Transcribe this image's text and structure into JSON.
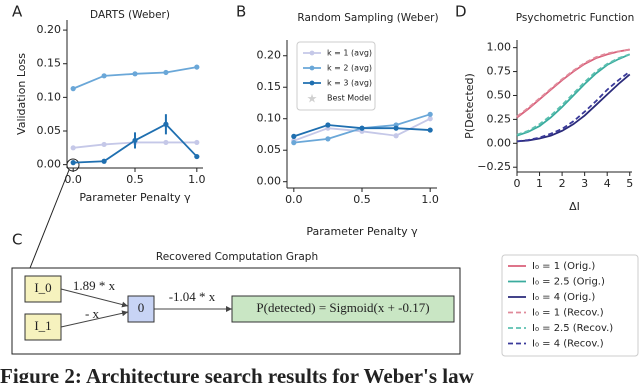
{
  "panel_labels": {
    "a": "A",
    "b": "B",
    "c": "C",
    "d": "D"
  },
  "chart_data": [
    {
      "type": "line",
      "title": "DARTS (Weber)",
      "x_label": "Parameter Penalty γ",
      "y_label": "Validation Loss",
      "x": [
        0,
        0.25,
        0.5,
        0.75,
        1.0
      ],
      "xlim": [
        -0.05,
        1.05
      ],
      "ylim": [
        -0.005,
        0.215
      ],
      "xticks": [
        {
          "value": 0,
          "label": "0.0"
        },
        {
          "value": 0.5,
          "label": "0.5"
        },
        {
          "value": 1,
          "label": "1.0"
        }
      ],
      "yticks": [
        {
          "value": 0,
          "label": "0.00"
        },
        {
          "value": 0.05,
          "label": "0.05"
        },
        {
          "value": 0.1,
          "label": "0.10"
        },
        {
          "value": 0.15,
          "label": "0.15"
        },
        {
          "value": 0.2,
          "label": "0.20"
        }
      ],
      "markers": true,
      "series": [
        {
          "color": "#c5c8e8",
          "values": [
            0.025,
            0.03,
            0.033,
            0.033,
            0.033
          ]
        },
        {
          "color": "#6aa7d8",
          "values": [
            0.113,
            0.132,
            0.135,
            0.137,
            0.145
          ]
        },
        {
          "color": "#1f6fb0",
          "values": [
            0.003,
            0.005,
            0.036,
            0.06,
            0.012
          ],
          "errors": [
            null,
            null,
            0.012,
            0.015,
            null
          ]
        }
      ]
    },
    {
      "type": "line",
      "title": "Random Sampling (Weber)",
      "x_label": "Parameter Penalty γ",
      "x": [
        0,
        0.25,
        0.5,
        0.75,
        1.0
      ],
      "xlim": [
        -0.05,
        1.05
      ],
      "ylim": [
        -0.01,
        0.225
      ],
      "xticks": [
        {
          "value": 0,
          "label": "0.0"
        },
        {
          "value": 0.5,
          "label": "0.5"
        },
        {
          "value": 1,
          "label": "1.0"
        }
      ],
      "yticks": [
        {
          "value": 0,
          "label": "0.00"
        },
        {
          "value": 0.05,
          "label": "0.05"
        },
        {
          "value": 0.1,
          "label": "0.10"
        },
        {
          "value": 0.15,
          "label": "0.15"
        },
        {
          "value": 0.2,
          "label": "0.20"
        }
      ],
      "markers": true,
      "legend": "upper left",
      "series": [
        {
          "name": "k = 1 (avg)",
          "color": "#c5c8e8",
          "values": [
            0.065,
            0.085,
            0.08,
            0.073,
            0.1
          ]
        },
        {
          "name": "k = 2 (avg)",
          "color": "#6aa7d8",
          "values": [
            0.062,
            0.068,
            0.085,
            0.09,
            0.107
          ]
        },
        {
          "name": "k = 3 (avg)",
          "color": "#1f6fb0",
          "values": [
            0.072,
            0.09,
            0.085,
            0.085,
            0.082
          ]
        }
      ],
      "extra_legend": [
        {
          "name": "Best Model",
          "color": "#d0d0d0"
        }
      ]
    },
    {
      "type": "line",
      "title": "Psychometric Function",
      "x_label": "ΔI",
      "y_label": "P(Detected)",
      "x": [
        0,
        0.5,
        1,
        1.5,
        2,
        2.5,
        3,
        3.5,
        4,
        4.5,
        5
      ],
      "xlim": [
        0,
        5.1
      ],
      "ylim": [
        -0.3,
        1.08
      ],
      "xticks": [
        0,
        1,
        2,
        3,
        4,
        5
      ],
      "yticks": [
        {
          "value": -0.25,
          "label": "−0.25"
        },
        {
          "value": 0,
          "label": "0.00"
        },
        {
          "value": 0.25,
          "label": "0.25"
        },
        {
          "value": 0.5,
          "label": "0.50"
        },
        {
          "value": 0.75,
          "label": "0.75"
        },
        {
          "value": 1,
          "label": "1.00"
        }
      ],
      "legend": "below",
      "series": [
        {
          "name": "I₀ = 1 (Orig.)",
          "color": "#d9607a",
          "values": [
            0.27,
            0.36,
            0.46,
            0.56,
            0.66,
            0.75,
            0.83,
            0.89,
            0.93,
            0.96,
            0.98
          ]
        },
        {
          "name": "I₀ = 2.5 (Orig.)",
          "color": "#3aab9e",
          "values": [
            0.08,
            0.12,
            0.18,
            0.27,
            0.38,
            0.5,
            0.62,
            0.73,
            0.82,
            0.88,
            0.93
          ]
        },
        {
          "name": "I₀ = 4 (Orig.)",
          "color": "#2a2a7a",
          "values": [
            0.02,
            0.03,
            0.05,
            0.08,
            0.13,
            0.2,
            0.29,
            0.4,
            0.51,
            0.62,
            0.72
          ]
        },
        {
          "name": "I₀ = 1 (Recov.)",
          "color": "#e08a9a",
          "dashed": true,
          "values": [
            0.28,
            0.37,
            0.47,
            0.57,
            0.67,
            0.76,
            0.84,
            0.9,
            0.94,
            0.96,
            0.98
          ]
        },
        {
          "name": "I₀ = 2.5 (Recov.)",
          "color": "#5cc0b0",
          "dashed": true,
          "values": [
            0.09,
            0.13,
            0.2,
            0.29,
            0.4,
            0.52,
            0.64,
            0.75,
            0.83,
            0.89,
            0.93
          ]
        },
        {
          "name": "I₀ = 4 (Recov.)",
          "color": "#3a3a9a",
          "dashed": true,
          "values": [
            0.02,
            0.035,
            0.06,
            0.1,
            0.15,
            0.23,
            0.33,
            0.44,
            0.56,
            0.66,
            0.75
          ]
        }
      ]
    }
  ],
  "graph": {
    "title": "Recovered Computation Graph",
    "nodes": [
      {
        "label": "I_0"
      },
      {
        "label": "I_1"
      },
      {
        "label": "0"
      },
      {
        "label": "P(detected) = Sigmoid(x + -0.17)"
      }
    ],
    "edges": [
      {
        "label": "1.89 * x"
      },
      {
        "label": "- x"
      },
      {
        "label": "-1.04 * x"
      }
    ]
  },
  "caption": "Figure 2: Architecture search results for Weber's law"
}
